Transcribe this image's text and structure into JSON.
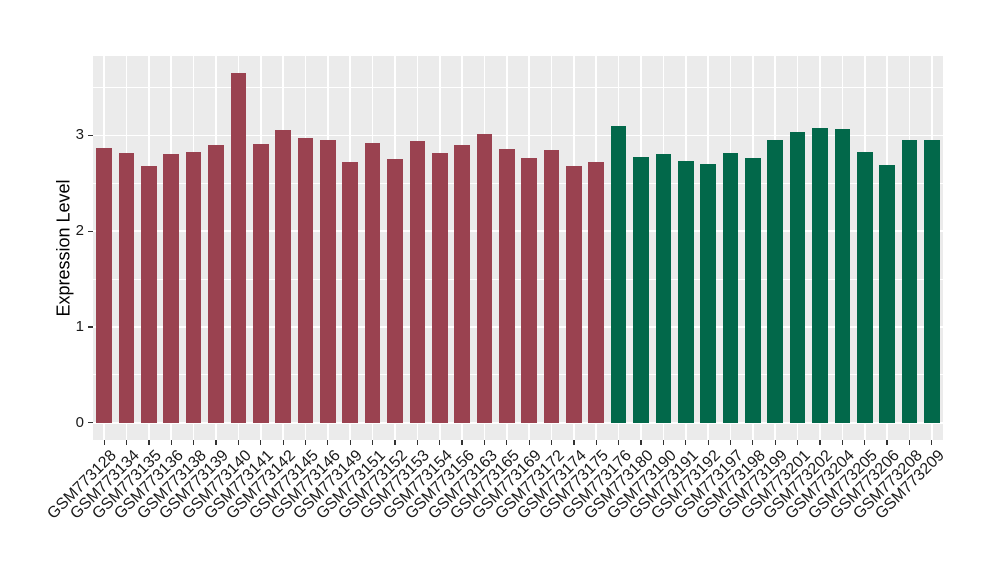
{
  "figure": {
    "background_color": "#FFFFFF",
    "panel_background_color": "#EBEBEB",
    "gridline_color": "#FFFFFF",
    "tick_color": "#333333",
    "axis_text_color": "#1A1A1A"
  },
  "chart_data": {
    "type": "bar",
    "title": "",
    "xlabel": "",
    "ylabel": "Expression Level",
    "ylim": [
      -0.18,
      3.83
    ],
    "yticks": [
      0,
      1,
      2,
      3
    ],
    "grid": "major-and-minor-white-on-gray",
    "legend_position": "none",
    "x_tick_label_angle_deg": 45,
    "group_colors": {
      "group1": "#9A4250",
      "group2": "#02684A"
    },
    "bars": [
      {
        "label": "GSM773128",
        "value": 2.87,
        "group": "group1"
      },
      {
        "label": "GSM773134",
        "value": 2.82,
        "group": "group1"
      },
      {
        "label": "GSM773135",
        "value": 2.68,
        "group": "group1"
      },
      {
        "label": "GSM773136",
        "value": 2.81,
        "group": "group1"
      },
      {
        "label": "GSM773138",
        "value": 2.83,
        "group": "group1"
      },
      {
        "label": "GSM773139",
        "value": 2.9,
        "group": "group1"
      },
      {
        "label": "GSM773140",
        "value": 3.65,
        "group": "group1"
      },
      {
        "label": "GSM773141",
        "value": 2.91,
        "group": "group1"
      },
      {
        "label": "GSM773142",
        "value": 3.06,
        "group": "group1"
      },
      {
        "label": "GSM773145",
        "value": 2.97,
        "group": "group1"
      },
      {
        "label": "GSM773146",
        "value": 2.95,
        "group": "group1"
      },
      {
        "label": "GSM773149",
        "value": 2.72,
        "group": "group1"
      },
      {
        "label": "GSM773151",
        "value": 2.92,
        "group": "group1"
      },
      {
        "label": "GSM773152",
        "value": 2.75,
        "group": "group1"
      },
      {
        "label": "GSM773153",
        "value": 2.94,
        "group": "group1"
      },
      {
        "label": "GSM773154",
        "value": 2.82,
        "group": "group1"
      },
      {
        "label": "GSM773156",
        "value": 2.9,
        "group": "group1"
      },
      {
        "label": "GSM773163",
        "value": 3.02,
        "group": "group1"
      },
      {
        "label": "GSM773165",
        "value": 2.86,
        "group": "group1"
      },
      {
        "label": "GSM773169",
        "value": 2.76,
        "group": "group1"
      },
      {
        "label": "GSM773172",
        "value": 2.85,
        "group": "group1"
      },
      {
        "label": "GSM773174",
        "value": 2.68,
        "group": "group1"
      },
      {
        "label": "GSM773175",
        "value": 2.72,
        "group": "group1"
      },
      {
        "label": "GSM773176",
        "value": 3.1,
        "group": "group2"
      },
      {
        "label": "GSM773180",
        "value": 2.78,
        "group": "group2"
      },
      {
        "label": "GSM773190",
        "value": 2.81,
        "group": "group2"
      },
      {
        "label": "GSM773191",
        "value": 2.73,
        "group": "group2"
      },
      {
        "label": "GSM773192",
        "value": 2.7,
        "group": "group2"
      },
      {
        "label": "GSM773197",
        "value": 2.82,
        "group": "group2"
      },
      {
        "label": "GSM773198",
        "value": 2.77,
        "group": "group2"
      },
      {
        "label": "GSM773199",
        "value": 2.95,
        "group": "group2"
      },
      {
        "label": "GSM773201",
        "value": 3.04,
        "group": "group2"
      },
      {
        "label": "GSM773202",
        "value": 3.08,
        "group": "group2"
      },
      {
        "label": "GSM773204",
        "value": 3.07,
        "group": "group2"
      },
      {
        "label": "GSM773205",
        "value": 2.83,
        "group": "group2"
      },
      {
        "label": "GSM773206",
        "value": 2.69,
        "group": "group2"
      },
      {
        "label": "GSM773208",
        "value": 2.95,
        "group": "group2"
      },
      {
        "label": "GSM773209",
        "value": 2.95,
        "group": "group2"
      }
    ]
  }
}
